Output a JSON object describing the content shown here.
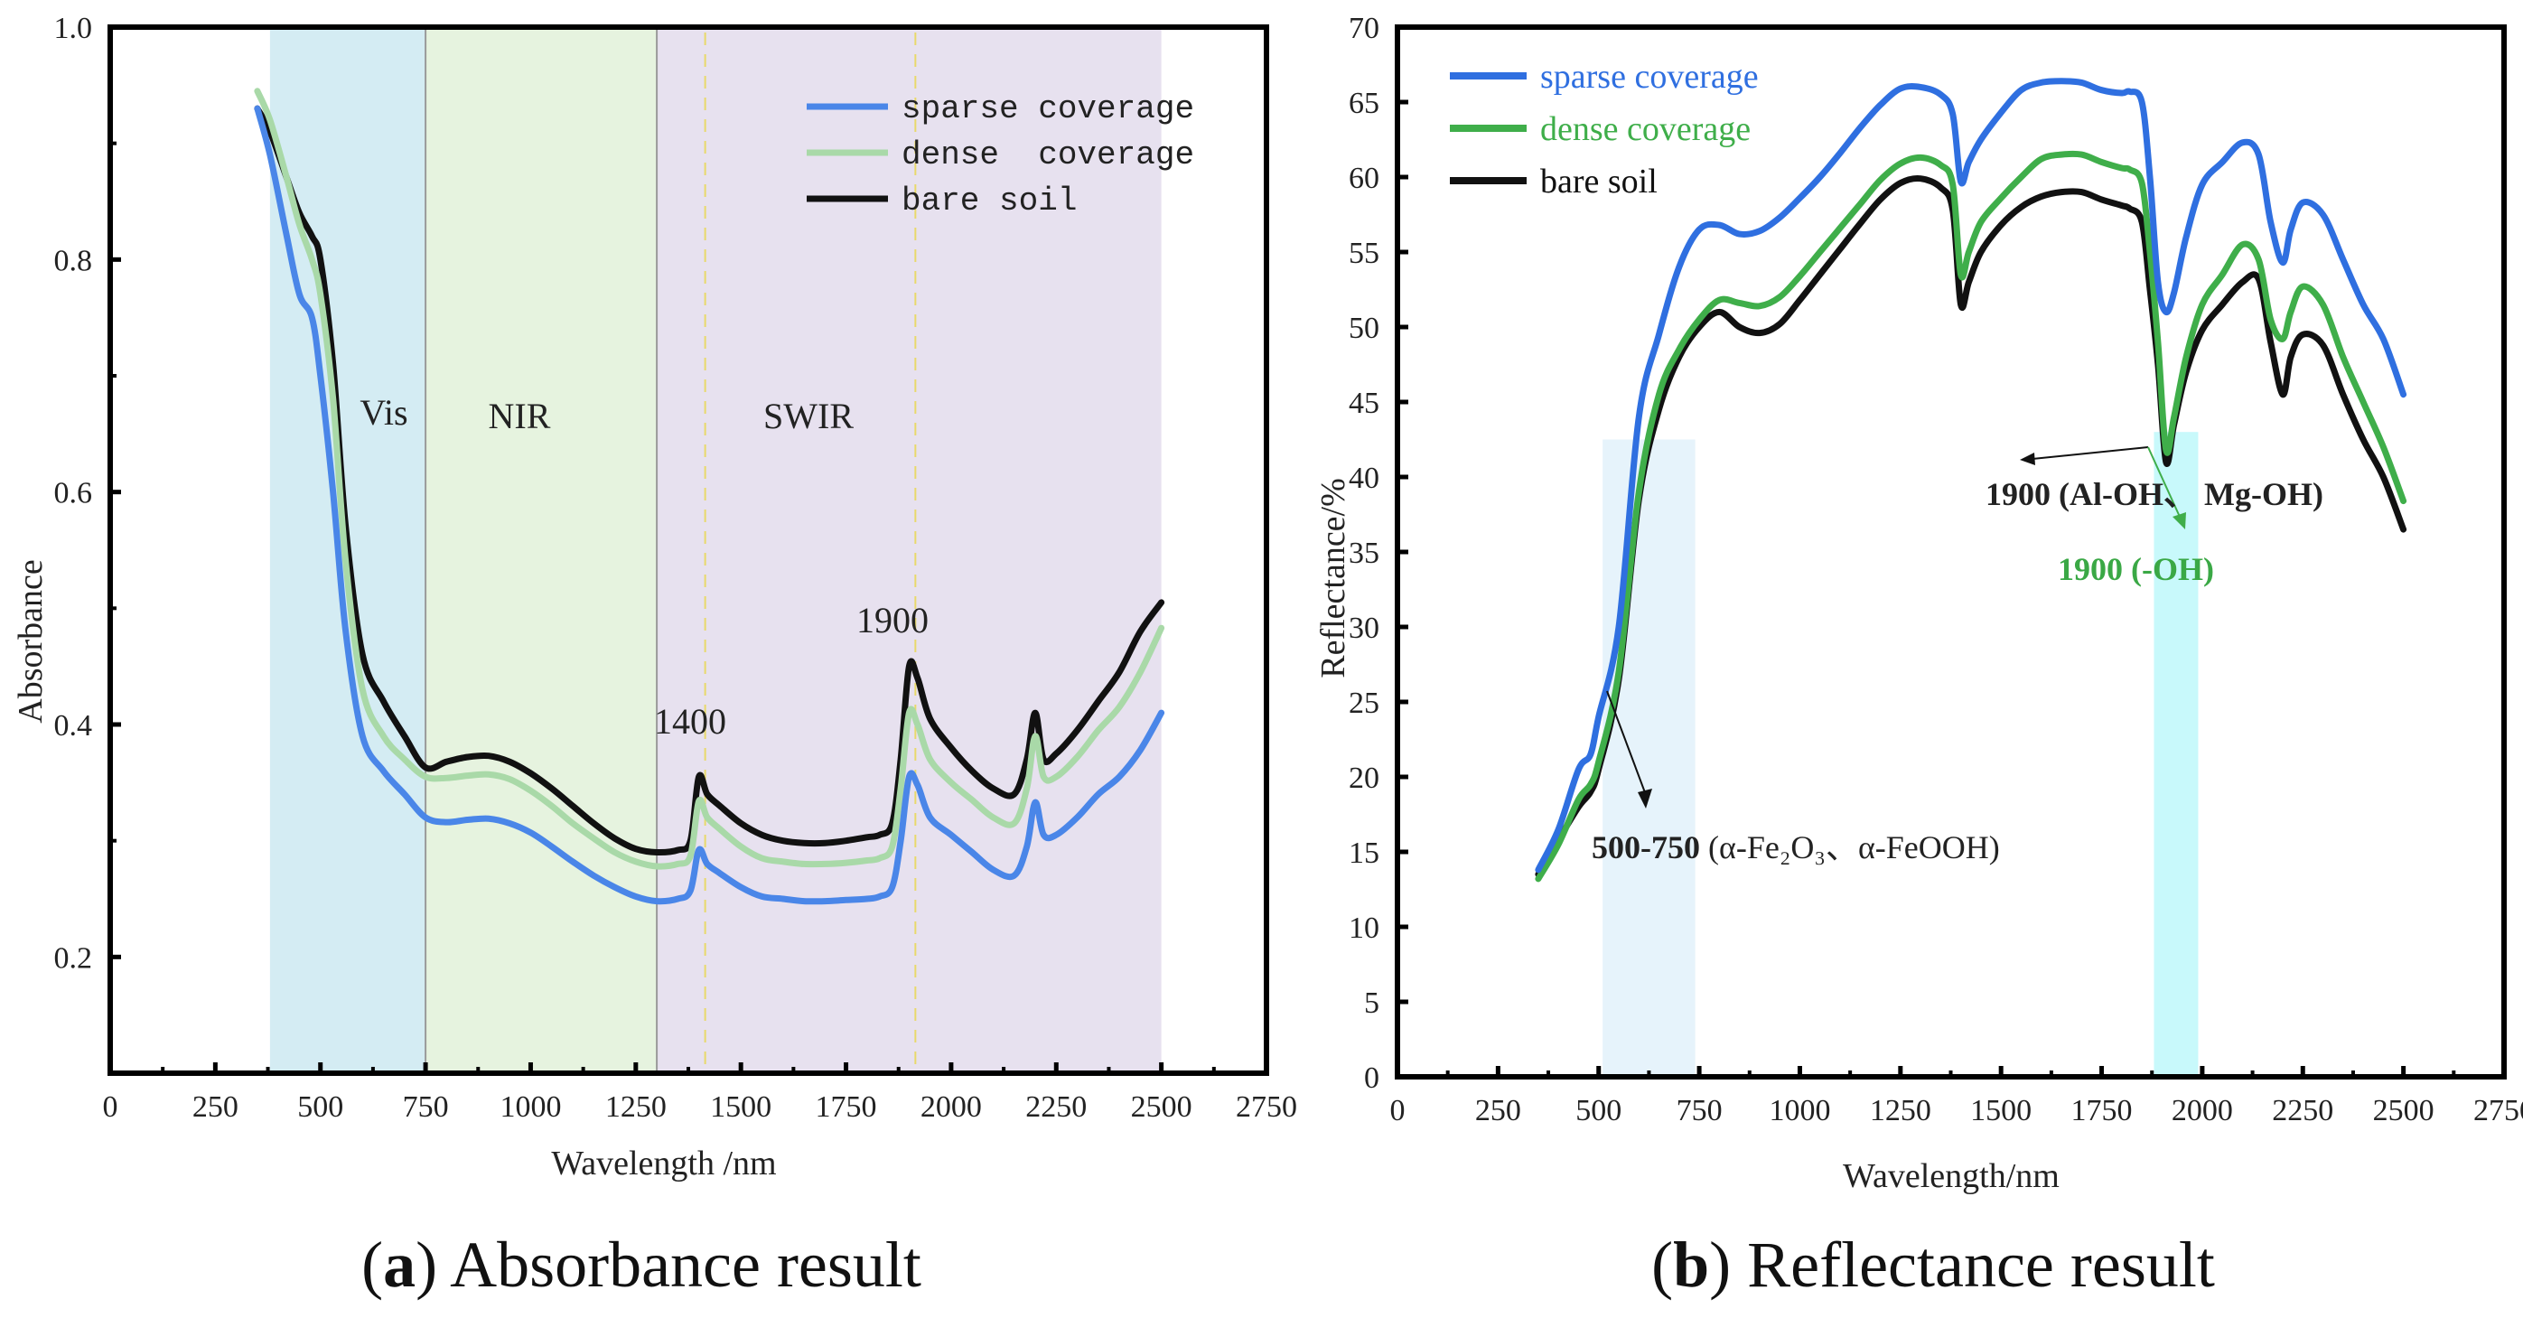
{
  "figure": {
    "caption_a_letter": "a",
    "caption_a_text": " Absorbance result",
    "caption_b_letter": "b",
    "caption_b_text": " Reflectance result"
  },
  "chart_data": [
    {
      "type": "line",
      "panel": "a",
      "xlabel": "Wavelength /nm",
      "ylabel": "Absorbance",
      "xlim": [
        0,
        2750
      ],
      "ylim": [
        0.1,
        1.0
      ],
      "xticks": [
        "0",
        "250",
        "500",
        "750",
        "1000",
        "1250",
        "1500",
        "1750",
        "2000",
        "2250",
        "2500",
        "2750"
      ],
      "yticks": [
        "0.2",
        "0.4",
        "0.6",
        "0.8",
        "1.0"
      ],
      "legend_position": "top-right",
      "regions": [
        {
          "label": "Vis",
          "from": 380,
          "to": 750,
          "color": "#d4ecf3"
        },
        {
          "label": "NIR",
          "from": 750,
          "to": 1300,
          "color": "#e6f3df"
        },
        {
          "label": "SWIR",
          "from": 1300,
          "to": 2500,
          "color": "#e7e1ef"
        }
      ],
      "annotations": [
        {
          "text": "1400",
          "x": 1400,
          "y": 0.43
        },
        {
          "text": "1900",
          "x": 1900,
          "y": 0.53
        }
      ],
      "series": [
        {
          "name": "sparse coverage",
          "color": "#4a86e8",
          "x": [
            350,
            380,
            420,
            450,
            480,
            500,
            530,
            560,
            600,
            650,
            700,
            750,
            800,
            850,
            900,
            950,
            1000,
            1050,
            1100,
            1150,
            1200,
            1250,
            1300,
            1350,
            1380,
            1400,
            1420,
            1450,
            1500,
            1550,
            1600,
            1650,
            1700,
            1750,
            1800,
            1830,
            1860,
            1880,
            1900,
            1920,
            1950,
            2000,
            2050,
            2100,
            2150,
            2180,
            2200,
            2220,
            2250,
            2300,
            2350,
            2400,
            2450,
            2500
          ],
          "y": [
            0.93,
            0.89,
            0.82,
            0.77,
            0.75,
            0.7,
            0.6,
            0.48,
            0.39,
            0.36,
            0.34,
            0.32,
            0.316,
            0.318,
            0.319,
            0.315,
            0.307,
            0.295,
            0.282,
            0.27,
            0.26,
            0.252,
            0.248,
            0.25,
            0.257,
            0.292,
            0.28,
            0.272,
            0.26,
            0.252,
            0.25,
            0.248,
            0.248,
            0.249,
            0.25,
            0.252,
            0.26,
            0.3,
            0.355,
            0.348,
            0.32,
            0.305,
            0.29,
            0.275,
            0.27,
            0.295,
            0.333,
            0.305,
            0.305,
            0.32,
            0.34,
            0.355,
            0.378,
            0.41
          ]
        },
        {
          "name": "dense  coverage",
          "color": "#a9d9a8",
          "x": [
            350,
            380,
            420,
            450,
            480,
            500,
            530,
            560,
            600,
            650,
            700,
            750,
            800,
            850,
            900,
            950,
            1000,
            1050,
            1100,
            1150,
            1200,
            1250,
            1300,
            1350,
            1380,
            1400,
            1420,
            1450,
            1500,
            1550,
            1600,
            1650,
            1700,
            1750,
            1800,
            1830,
            1860,
            1880,
            1900,
            1920,
            1950,
            2000,
            2050,
            2100,
            2150,
            2180,
            2200,
            2220,
            2250,
            2300,
            2350,
            2400,
            2450,
            2500
          ],
          "y": [
            0.945,
            0.92,
            0.87,
            0.83,
            0.8,
            0.77,
            0.68,
            0.54,
            0.43,
            0.39,
            0.37,
            0.355,
            0.354,
            0.356,
            0.357,
            0.353,
            0.343,
            0.33,
            0.315,
            0.302,
            0.29,
            0.282,
            0.278,
            0.28,
            0.287,
            0.334,
            0.32,
            0.31,
            0.295,
            0.285,
            0.282,
            0.28,
            0.28,
            0.281,
            0.283,
            0.285,
            0.295,
            0.345,
            0.41,
            0.4,
            0.37,
            0.35,
            0.335,
            0.32,
            0.315,
            0.345,
            0.39,
            0.355,
            0.355,
            0.372,
            0.395,
            0.415,
            0.445,
            0.483
          ]
        },
        {
          "name": "bare soil",
          "color": "#111111",
          "x": [
            350,
            380,
            420,
            450,
            480,
            500,
            530,
            560,
            600,
            650,
            700,
            750,
            800,
            850,
            900,
            950,
            1000,
            1050,
            1100,
            1150,
            1200,
            1250,
            1300,
            1350,
            1380,
            1400,
            1420,
            1450,
            1500,
            1550,
            1600,
            1650,
            1700,
            1750,
            1800,
            1830,
            1860,
            1880,
            1900,
            1920,
            1950,
            2000,
            2050,
            2100,
            2150,
            2180,
            2200,
            2220,
            2250,
            2300,
            2350,
            2400,
            2450,
            2500
          ],
          "y": [
            0.93,
            0.91,
            0.87,
            0.84,
            0.82,
            0.8,
            0.71,
            0.57,
            0.46,
            0.42,
            0.39,
            0.363,
            0.368,
            0.372,
            0.373,
            0.368,
            0.358,
            0.345,
            0.33,
            0.315,
            0.302,
            0.293,
            0.29,
            0.292,
            0.3,
            0.355,
            0.34,
            0.33,
            0.315,
            0.305,
            0.3,
            0.298,
            0.298,
            0.3,
            0.303,
            0.305,
            0.315,
            0.37,
            0.45,
            0.44,
            0.405,
            0.38,
            0.36,
            0.345,
            0.34,
            0.37,
            0.41,
            0.37,
            0.375,
            0.395,
            0.42,
            0.445,
            0.48,
            0.505
          ]
        }
      ]
    },
    {
      "type": "line",
      "panel": "b",
      "xlabel": "Wavelength/nm",
      "ylabel": "Reflectance/%",
      "xlim": [
        0,
        2750
      ],
      "ylim": [
        0,
        70
      ],
      "xticks": [
        "0",
        "250",
        "500",
        "750",
        "1000",
        "1250",
        "1500",
        "1750",
        "2000",
        "2250",
        "2500",
        "2750"
      ],
      "yticks": [
        "0",
        "5",
        "10",
        "15",
        "20",
        "25",
        "30",
        "35",
        "40",
        "45",
        "50",
        "55",
        "60",
        "65",
        "70"
      ],
      "legend_position": "top-left",
      "highlight_bands": [
        {
          "from": 510,
          "to": 740,
          "ymax": 42.5,
          "color": "#e6f3fb"
        },
        {
          "from": 1880,
          "to": 1990,
          "ymax": 43,
          "color": "#c8f9fb"
        }
      ],
      "annotations": [
        {
          "bold": "500-750",
          "text": " (α-Fe₂O₃、α-FeOOH)",
          "color": "#111111"
        },
        {
          "text": "1900 (Al-OH、 Mg-OH)",
          "color": "#111111"
        },
        {
          "text": "1900 (-OH)",
          "color": "#3aa845"
        }
      ],
      "series": [
        {
          "name": "sparse coverage",
          "color": "#2f6fe0",
          "x": [
            350,
            400,
            450,
            480,
            500,
            550,
            600,
            650,
            700,
            750,
            800,
            850,
            900,
            950,
            1000,
            1050,
            1100,
            1150,
            1200,
            1250,
            1300,
            1350,
            1380,
            1400,
            1420,
            1450,
            1500,
            1550,
            1600,
            1650,
            1700,
            1750,
            1800,
            1820,
            1850,
            1870,
            1890,
            1910,
            1930,
            1960,
            2000,
            2050,
            2100,
            2140,
            2170,
            2200,
            2220,
            2250,
            2300,
            2350,
            2400,
            2450,
            2500
          ],
          "y": [
            13.8,
            16.5,
            20.5,
            21.5,
            24,
            30,
            44,
            49.5,
            54,
            56.5,
            56.8,
            56.2,
            56.4,
            57.3,
            58.6,
            60,
            61.6,
            63.3,
            64.8,
            65.9,
            66,
            65.5,
            64.2,
            59.7,
            61,
            62.5,
            64.3,
            65.8,
            66.3,
            66.4,
            66.3,
            65.8,
            65.6,
            65.7,
            65,
            60,
            53,
            51,
            52.3,
            56,
            59.5,
            61,
            62.3,
            61.5,
            57,
            54.3,
            56.5,
            58.3,
            57.5,
            54.5,
            51.5,
            49.2,
            45.5
          ]
        },
        {
          "name": "dense coverage",
          "color": "#3fae4a",
          "x": [
            350,
            400,
            450,
            480,
            500,
            550,
            600,
            650,
            700,
            750,
            800,
            850,
            900,
            950,
            1000,
            1050,
            1100,
            1150,
            1200,
            1250,
            1300,
            1350,
            1380,
            1400,
            1420,
            1450,
            1500,
            1550,
            1600,
            1650,
            1700,
            1750,
            1800,
            1820,
            1850,
            1870,
            1890,
            1910,
            1930,
            1960,
            2000,
            2050,
            2100,
            2140,
            2170,
            2200,
            2220,
            2250,
            2300,
            2350,
            2400,
            2450,
            2500
          ],
          "y": [
            13.2,
            15.5,
            18.5,
            19.5,
            21,
            27,
            39,
            45.5,
            48.5,
            50.5,
            51.8,
            51.6,
            51.4,
            52,
            53.4,
            55,
            56.6,
            58.2,
            59.8,
            60.9,
            61.3,
            60.8,
            59.5,
            53.5,
            55,
            57,
            58.6,
            60,
            61.2,
            61.5,
            61.5,
            61,
            60.6,
            60.5,
            59.6,
            55,
            49,
            41.8,
            44,
            48,
            51.5,
            53.5,
            55.5,
            54.5,
            50.5,
            49.2,
            51,
            52.7,
            51.5,
            48,
            45,
            42,
            38.4
          ]
        },
        {
          "name": "bare soil",
          "color": "#111111",
          "x": [
            350,
            400,
            450,
            480,
            500,
            550,
            600,
            650,
            700,
            750,
            800,
            850,
            900,
            950,
            1000,
            1050,
            1100,
            1150,
            1200,
            1250,
            1300,
            1350,
            1380,
            1400,
            1420,
            1450,
            1500,
            1550,
            1600,
            1650,
            1700,
            1750,
            1800,
            1820,
            1850,
            1870,
            1890,
            1910,
            1930,
            1960,
            2000,
            2050,
            2100,
            2140,
            2170,
            2200,
            2220,
            2250,
            2300,
            2350,
            2400,
            2450,
            2500
          ],
          "y": [
            13.5,
            15.8,
            18,
            19,
            20.5,
            26.5,
            38.5,
            44.5,
            48,
            50,
            51,
            50,
            49.6,
            50.2,
            51.8,
            53.5,
            55.2,
            56.9,
            58.5,
            59.6,
            59.9,
            59.3,
            57.8,
            51.5,
            53,
            55,
            56.8,
            58,
            58.7,
            59,
            59,
            58.5,
            58.1,
            57.9,
            57,
            52.5,
            47.5,
            41,
            43.5,
            47,
            49.8,
            51.5,
            53,
            53.2,
            49,
            45.5,
            48,
            49.5,
            48.8,
            45.5,
            42.5,
            40,
            36.5
          ]
        }
      ]
    }
  ]
}
